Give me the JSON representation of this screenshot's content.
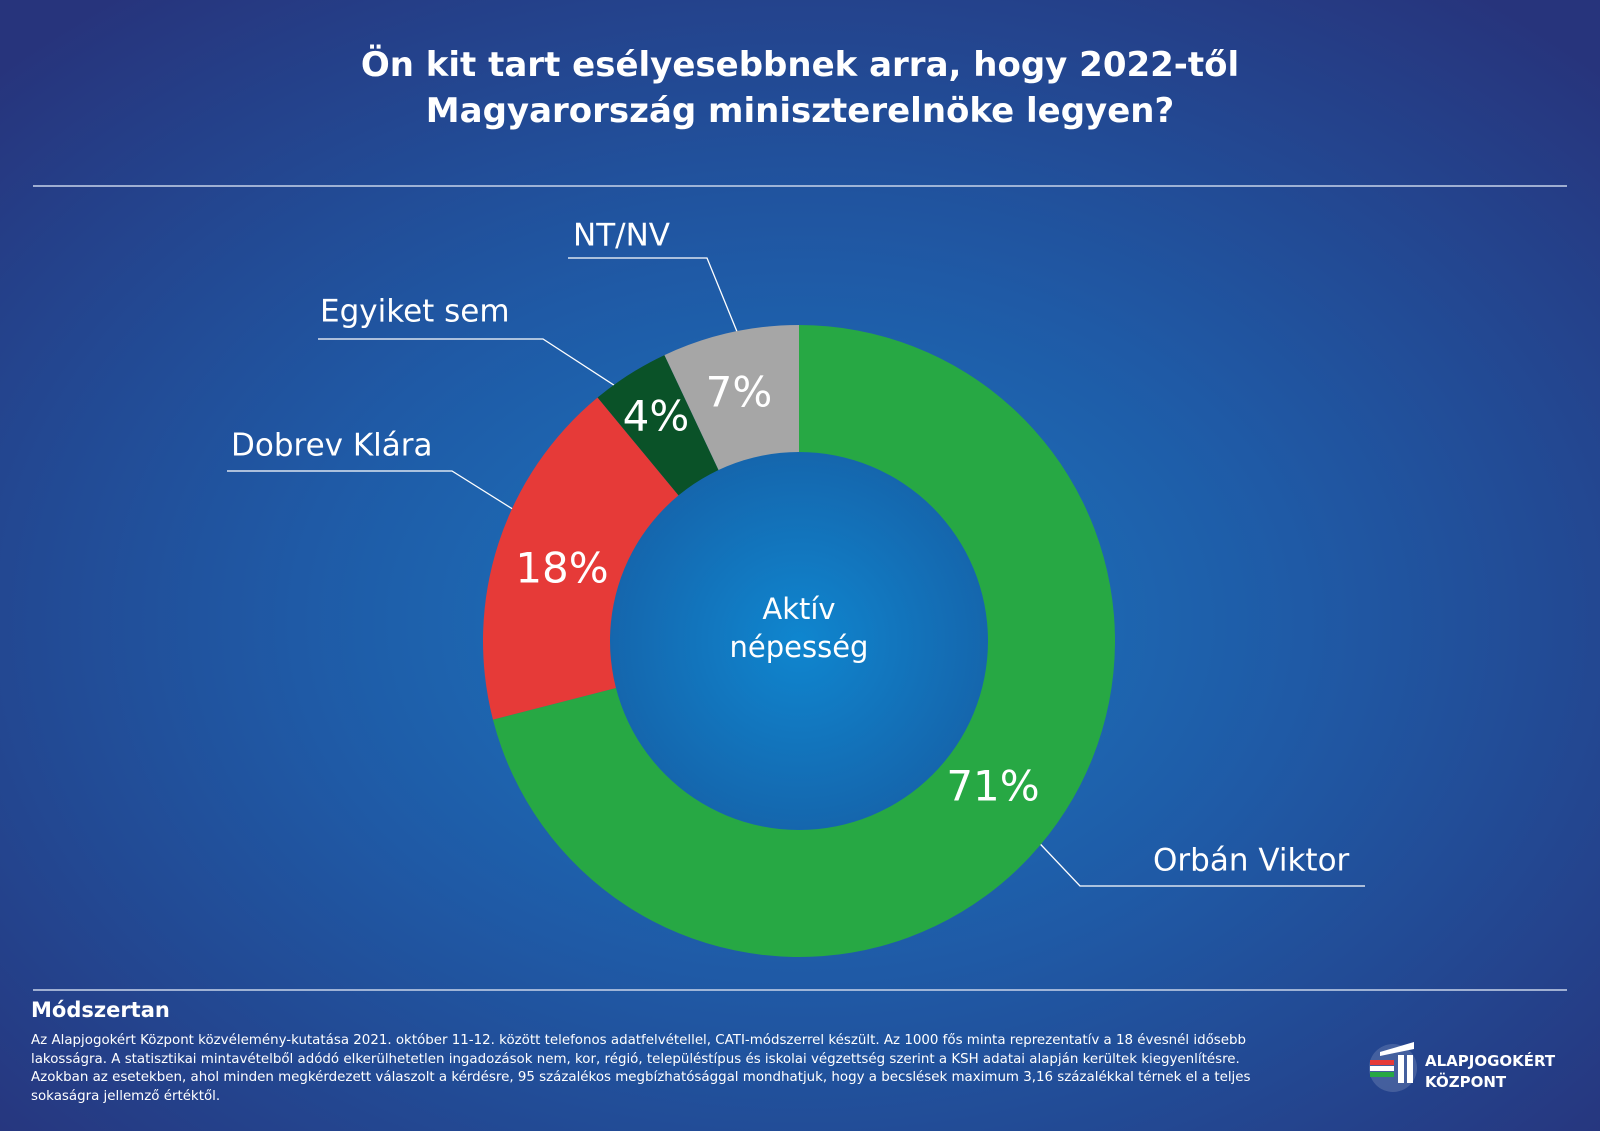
{
  "chart_data": {
    "type": "donut",
    "title": [
      "Ön kit tart esélyesebbnek arra, hogy 2022-től",
      "Magyarország miniszterelnöke legyen?"
    ],
    "center_label": "Aktív népesség",
    "categories": [
      "Orbán Viktor",
      "Dobrev Klára",
      "Egyiket sem",
      "NT/NV"
    ],
    "values": [
      71,
      18,
      4,
      7
    ],
    "value_labels": [
      "71%",
      "18%",
      "4%",
      "7%"
    ],
    "colors": [
      "#27a844",
      "#e63a38",
      "#0a5228",
      "#a6a6a6"
    ]
  },
  "footer": {
    "heading": "Módszertan",
    "text": "Az Alapjogokért Központ közvélemény-kutatása 2021. október 11-12. között telefonos adatfelvétellel, CATI-módszerrel készült. Az 1000 fős minta reprezentatív a 18 évesnél idősebb lakosságra. A statisztikai mintavételből adódó elkerülhetetlen ingadozások nem, kor, régió, településtípus és iskolai végzettség szerint a KSH adatai alapján kerültek kiegyenlítésre. Azokban az esetekben, ahol minden megkérdezett válaszolt a kérdésre, 95 százalékos megbízhatósággal mondhatjuk, hogy a becslések maximum 3,16 százalékkal térnek el a teljes sokaságra jellemző értéktől.",
    "logo": "ALAPJOGOKÉRT KÖZPONT"
  }
}
